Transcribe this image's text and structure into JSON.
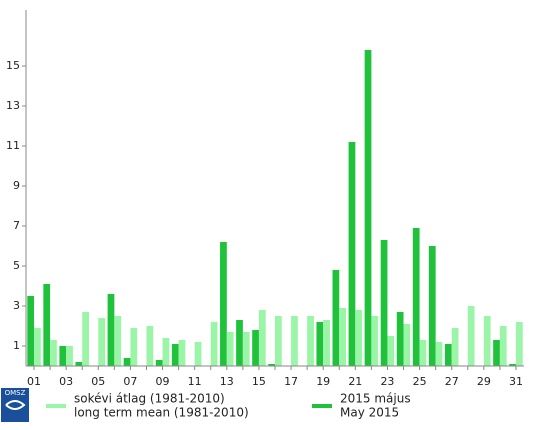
{
  "logo": "OMSZ",
  "chart_data": {
    "type": "bar",
    "categories": [
      "01",
      null,
      "03",
      null,
      "05",
      null,
      "07",
      null,
      "09",
      null,
      "11",
      null,
      "13",
      null,
      "15",
      null,
      "17",
      null,
      "19",
      null,
      "21",
      null,
      "23",
      null,
      "25",
      null,
      "27",
      null,
      "29",
      null,
      "31"
    ],
    "series": [
      {
        "name": "2015 május",
        "name_en": "May 2015",
        "color": "#1fc23a",
        "values": [
          3.5,
          4.1,
          1.0,
          0.2,
          0,
          3.6,
          0.4,
          0,
          0.3,
          1.1,
          0,
          0,
          6.2,
          2.3,
          1.8,
          0.1,
          0,
          0,
          2.2,
          4.8,
          11.2,
          15.8,
          6.3,
          2.7,
          6.9,
          6.0,
          1.1,
          0,
          0,
          1.3,
          0.1
        ]
      },
      {
        "name": "sokévi átlag (1981-2010)",
        "name_en": "long term mean (1981-2010)",
        "color": "#9af5a6",
        "values": [
          1.9,
          1.3,
          1.0,
          2.7,
          2.4,
          2.5,
          1.9,
          2.0,
          1.4,
          1.3,
          1.2,
          2.2,
          1.7,
          1.7,
          2.8,
          2.5,
          2.5,
          2.5,
          2.3,
          2.9,
          2.8,
          2.5,
          1.5,
          2.1,
          1.3,
          1.2,
          1.9,
          3.0,
          2.5,
          2.0,
          2.2
        ]
      }
    ],
    "legend_order": [
      1,
      0
    ],
    "ylim": [
      0,
      17.8
    ],
    "yticks": [
      1,
      3,
      5,
      7,
      9,
      11,
      13,
      15
    ]
  }
}
